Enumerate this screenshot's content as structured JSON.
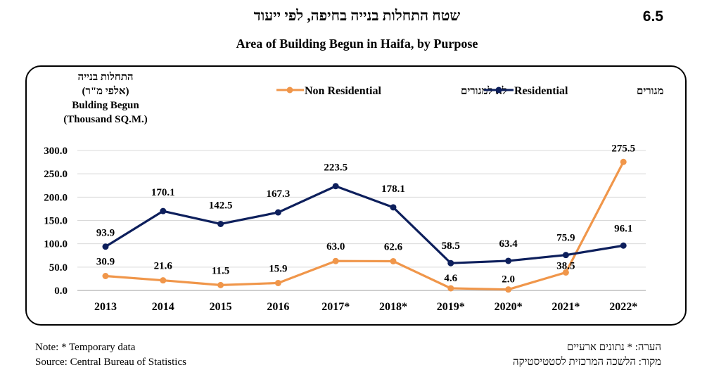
{
  "figure_number": "6.5",
  "title_he": "שטח התחלות בנייה בחיפה, לפי ייעוד",
  "title_en": "Area of Building Begun in Haifa, by Purpose",
  "notes": {
    "note_en": "Note: * Temporary data",
    "source_en": "Source: Central Bureau of Statistics",
    "note_he": "הערה: * נתונים ארעיים",
    "source_he": "מקור: הלשכה המרכזית לסטטיסטיקה"
  },
  "colors": {
    "residential": "#0d1f5c",
    "non_residential": "#f0964a",
    "grid": "#d9d9d9"
  },
  "chart_data": {
    "type": "line",
    "ylabel_he_1": "התחלות בנייה",
    "ylabel_he_2": "(אלפי מ\"ר)",
    "ylabel_en_1": "Bulding Begun",
    "ylabel_en_2": "(Thousand SQ.M.)",
    "ylim": [
      0,
      300
    ],
    "yticks": [
      "0.0",
      "50.0",
      "100.0",
      "150.0",
      "200.0",
      "250.0",
      "300.0"
    ],
    "categories": [
      "2013",
      "2014",
      "2015",
      "2016",
      "2017*",
      "2018*",
      "2019*",
      "2020*",
      "2021*",
      "2022*"
    ],
    "legend_position": "top",
    "series": [
      {
        "name": "Residential",
        "name_he": "מגורים",
        "values": [
          93.9,
          170.1,
          142.5,
          167.3,
          223.5,
          178.1,
          58.5,
          63.4,
          75.9,
          96.1
        ],
        "labels": [
          "93.9",
          "170.1",
          "142.5",
          "167.3",
          "223.5",
          "178.1",
          "58.5",
          "63.4",
          "75.9",
          "96.1"
        ]
      },
      {
        "name": "Non Residential",
        "name_he": "לא למגורים",
        "values": [
          30.9,
          21.6,
          11.5,
          15.9,
          63.0,
          62.6,
          4.6,
          2.0,
          38.5,
          275.5
        ],
        "labels": [
          "30.9",
          "21.6",
          "11.5",
          "15.9",
          "63.0",
          "62.6",
          "4.6",
          "2.0",
          "38.5",
          "275.5"
        ]
      }
    ]
  }
}
